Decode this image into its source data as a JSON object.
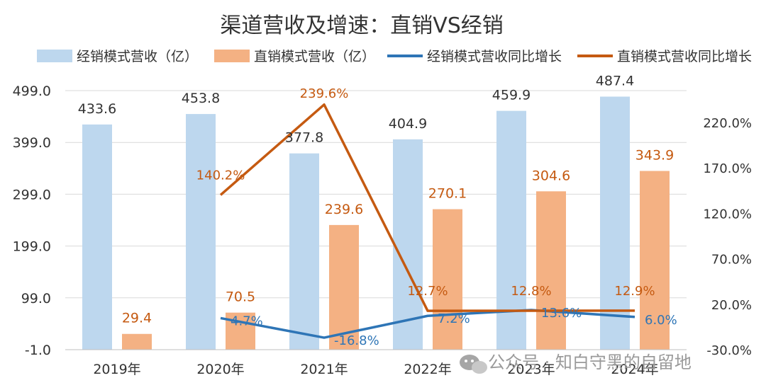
{
  "chart_data": {
    "type": "bar",
    "title": "渠道营收及增速：直销VS经销",
    "categories": [
      "2019年",
      "2020年",
      "2021年",
      "2022年",
      "2023年",
      "2024年"
    ],
    "series": [
      {
        "name": "经销模式营收（亿）",
        "type": "bar",
        "axis": "left",
        "color": "#bdd7ee",
        "values": [
          433.6,
          453.8,
          377.8,
          404.9,
          459.9,
          487.4
        ],
        "labels": [
          "433.6",
          "453.8",
          "377.8",
          "404.9",
          "459.9",
          "487.4"
        ]
      },
      {
        "name": "直销模式营收（亿）",
        "type": "bar",
        "axis": "left",
        "color": "#f4b183",
        "values": [
          29.4,
          70.5,
          239.6,
          270.1,
          304.6,
          343.9
        ],
        "labels": [
          "29.4",
          "70.5",
          "239.6",
          "270.1",
          "304.6",
          "343.9"
        ]
      },
      {
        "name": "经销模式营收同比增长",
        "type": "line",
        "axis": "right",
        "color": "#2e75b6",
        "values": [
          null,
          4.7,
          -16.8,
          7.2,
          13.6,
          6.0
        ],
        "labels": [
          "",
          "4.7%",
          "-16.8%",
          "7.2%",
          "13.6%",
          "6.0%"
        ]
      },
      {
        "name": "直销模式营收同比增长",
        "type": "line",
        "axis": "right",
        "color": "#c55a11",
        "values": [
          null,
          140.2,
          239.6,
          12.7,
          12.8,
          12.9
        ],
        "labels": [
          "",
          "140.2%",
          "239.6%",
          "12.7%",
          "12.8%",
          "12.9%"
        ]
      }
    ],
    "y_left": {
      "ticks": [
        -1.0,
        99.0,
        199.0,
        299.0,
        399.0,
        499.0
      ],
      "tick_labels": [
        "-1.0",
        "99.0",
        "199.0",
        "299.0",
        "399.0",
        "499.0"
      ],
      "range": [
        -1.0,
        499.0
      ]
    },
    "y_right": {
      "ticks": [
        -30,
        20,
        70,
        120,
        170,
        220
      ],
      "tick_labels": [
        "-30.0%",
        "20.0%",
        "70.0%",
        "120.0%",
        "170.0%",
        "220.0%"
      ],
      "range": [
        -30,
        255
      ]
    },
    "grid": true,
    "legend_position": "top"
  },
  "watermark": {
    "icon": "wechat-icon",
    "text": "公众号 · 知白守黑的自留地"
  }
}
